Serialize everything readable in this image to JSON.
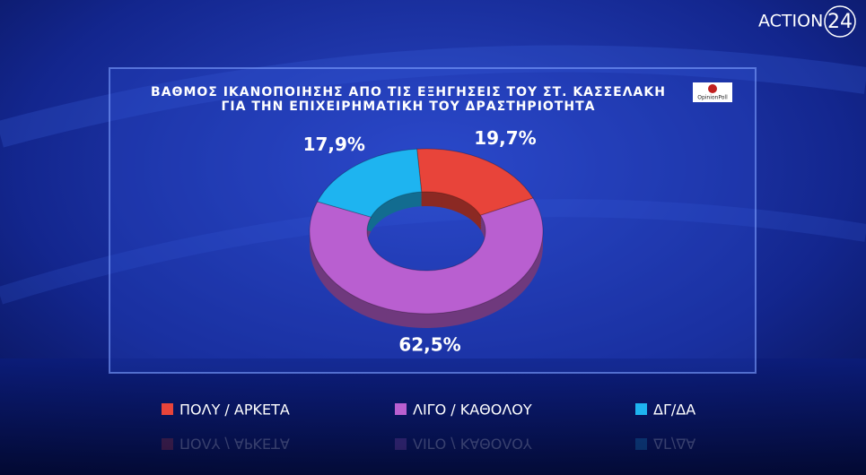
{
  "chart_data": {
    "type": "pie",
    "title": [
      "ΒΑΘΜΟΣ ΙΚΑΝΟΠΟΙΗΣΗΣ ΑΠΟ ΤΙΣ ΕΞΗΓΗΣΕΙΣ ΤΟΥ ΣΤ. ΚΑΣΣΕΛΑΚΗ",
      "ΓΙΑ ΤΗΝ ΕΠΙΧΕΙΡΗΜΑΤΙΚΗ ΤΟΥ ΔΡΑΣΤΗΡΙΟΤΗΤΑ"
    ],
    "categories": [
      "ΠΟΛΥ / ΑΡΚΕΤΑ",
      "ΛΙΓΟ / ΚΑΘΟΛΟΥ",
      "ΔΓ/ΔΑ"
    ],
    "values": [
      19.7,
      62.5,
      17.9
    ],
    "value_labels": [
      "19,7%",
      "62,5%",
      "17,9%"
    ],
    "colors": [
      "#e8443a",
      "#b95fd0",
      "#1eb4f0"
    ],
    "donut": true
  },
  "header": {
    "channel": "ACTION",
    "channel_number": "24",
    "source": "OpinionPoll"
  }
}
